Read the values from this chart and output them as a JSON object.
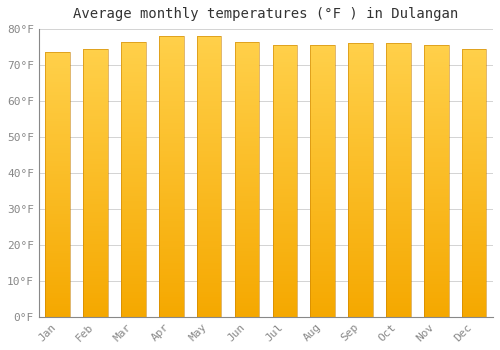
{
  "title": "Average monthly temperatures (°F ) in Dulangan",
  "months": [
    "Jan",
    "Feb",
    "Mar",
    "Apr",
    "May",
    "Jun",
    "Jul",
    "Aug",
    "Sep",
    "Oct",
    "Nov",
    "Dec"
  ],
  "values": [
    73.5,
    74.5,
    76.5,
    78.0,
    78.0,
    76.5,
    75.5,
    75.5,
    76.0,
    76.0,
    75.5,
    74.5
  ],
  "bar_color_top": "#FFD04A",
  "bar_color_bottom": "#F5A800",
  "bar_edge_color": "#C98000",
  "background_color": "#FFFFFF",
  "grid_color": "#CCCCCC",
  "ylim": [
    0,
    80
  ],
  "yticks": [
    0,
    10,
    20,
    30,
    40,
    50,
    60,
    70,
    80
  ],
  "ytick_labels": [
    "0°F",
    "10°F",
    "20°F",
    "30°F",
    "40°F",
    "50°F",
    "60°F",
    "70°F",
    "80°F"
  ],
  "title_fontsize": 10,
  "tick_fontsize": 8,
  "font_family": "monospace",
  "bar_width": 0.65
}
